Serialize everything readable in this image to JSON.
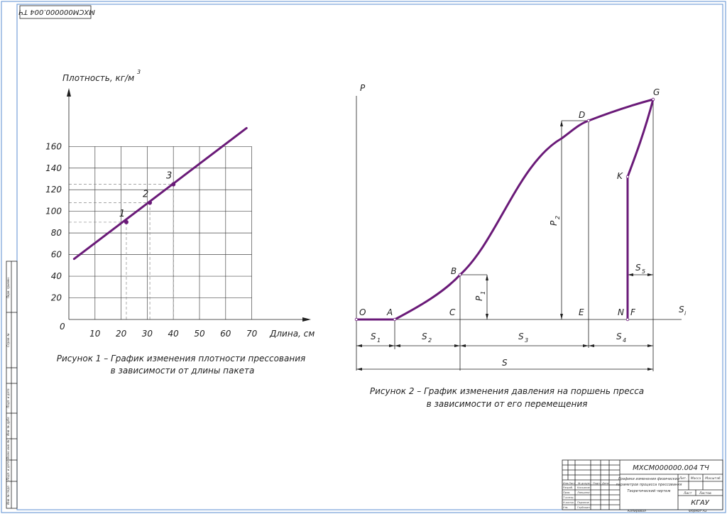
{
  "sheet": {
    "stamp_code_rotated": "МХСМ000000.004 ТЧ",
    "frame_color": "#5b8ed0",
    "curve_color": "#6a1a78"
  },
  "figure1": {
    "caption_line1": "Рисунок 1 – График изменения плотности прессования",
    "caption_line2": "в зависимости от длины пакета",
    "ylabel": "Плотность, кг/м",
    "ylabel_sup": "3",
    "xlabel": "Длина, см",
    "origin_label": "0",
    "chart_data": {
      "type": "line",
      "title": "",
      "xlabel": "Длина, см",
      "ylabel": "Плотность, кг/м3",
      "xlim": [
        0,
        70
      ],
      "ylim": [
        0,
        160
      ],
      "x_ticks": [
        10,
        20,
        30,
        40,
        50,
        60,
        70
      ],
      "y_ticks": [
        20,
        40,
        60,
        80,
        100,
        120,
        140,
        160
      ],
      "grid": true,
      "series": [
        {
          "x": [
            2,
            68
          ],
          "y": [
            56,
            177
          ]
        }
      ],
      "marked_points": [
        {
          "label": "1",
          "x": 22,
          "y": 90
        },
        {
          "label": "2",
          "x": 31,
          "y": 108
        },
        {
          "label": "3",
          "x": 40,
          "y": 125
        }
      ]
    }
  },
  "figure2": {
    "caption_line1": "Рисунок 2 – График изменения давления на поршень пресса",
    "caption_line2": "в зависимости от его перемещения",
    "axis_p": "P",
    "axis_s": "S",
    "axis_s_sub": "i",
    "points": {
      "O": "O",
      "A": "A",
      "B": "B",
      "C": "C",
      "D": "D",
      "E": "E",
      "G": "G",
      "K": "K",
      "N": "N",
      "F": "F"
    },
    "dims": {
      "s1": "S",
      "s1_sub": "1",
      "s2": "S",
      "s2_sub": "2",
      "s3": "S",
      "s3_sub": "3",
      "s4": "S",
      "s4_sub": "4",
      "s5": "S",
      "s5_sub": "5",
      "s_total": "S",
      "p1": "P",
      "p1_sub": "1",
      "p2": "P",
      "p2_sub": "2"
    }
  },
  "title_block": {
    "code": "МХСМ000000.004 ТЧ",
    "title_line1": "Графики изменения физических",
    "title_line2": "параметров процесса прессования",
    "title_line3": "Теоретический чертеж",
    "org": "КГАУ",
    "col_lit": "Лит.",
    "col_mass": "Масса",
    "col_scale": "Масштаб",
    "sheet_label": "Лист",
    "sheets_label": "Листов",
    "hdr_izm": "Изм.",
    "hdr_list": "Лист",
    "hdr_docno": "№ докум.",
    "hdr_sign": "Подп.",
    "hdr_date": "Дата",
    "role_dev": "Разраб.",
    "role_check": "Пров.",
    "role_tcontr": "Т.контр.",
    "role_ncontr": "Н.контр.",
    "role_appr": "Утв.",
    "name_dev": "Касьянов",
    "name_check": "Лапшина",
    "name_ncontr": "Пырянов",
    "name_appr": "Глубокин",
    "copied": "Копировал",
    "format": "Формат  А3"
  },
  "side_strip": {
    "s1": "Перв. примен.",
    "s2": "Справ. №",
    "s3": "Подп. и дата",
    "s4": "Инв. № дубл.",
    "s5": "Взам. инв. №",
    "s6": "Подп. и дата",
    "s7": "Инв. № подл."
  }
}
